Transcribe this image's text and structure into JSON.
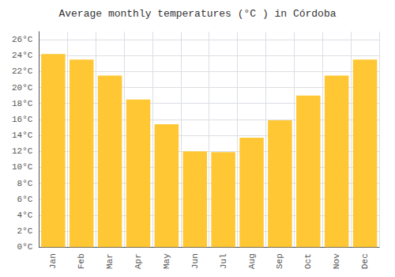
{
  "chart_data": {
    "type": "bar",
    "title": "Average monthly temperatures (°C ) in Córdoba",
    "categories": [
      "Jan",
      "Feb",
      "Mar",
      "Apr",
      "May",
      "Jun",
      "Jul",
      "Aug",
      "Sep",
      "Oct",
      "Nov",
      "Dec"
    ],
    "values": [
      24.2,
      23.5,
      21.5,
      18.5,
      15.4,
      12.0,
      11.9,
      13.7,
      15.9,
      19.0,
      21.5,
      23.5
    ],
    "color": "#FFC733",
    "ylim": [
      0,
      27
    ],
    "yticks": [
      {
        "value": 0,
        "label": "0°C"
      },
      {
        "value": 2,
        "label": "2°C"
      },
      {
        "value": 4,
        "label": "4°C"
      },
      {
        "value": 6,
        "label": "6°C"
      },
      {
        "value": 8,
        "label": "8°C"
      },
      {
        "value": 10,
        "label": "10°C"
      },
      {
        "value": 12,
        "label": "12°C"
      },
      {
        "value": 14,
        "label": "14°C"
      },
      {
        "value": 16,
        "label": "16°C"
      },
      {
        "value": 18,
        "label": "18°C"
      },
      {
        "value": 20,
        "label": "20°C"
      },
      {
        "value": 22,
        "label": "22°C"
      },
      {
        "value": 24,
        "label": "24°C"
      },
      {
        "value": 26,
        "label": "26°C"
      }
    ],
    "grid": true
  }
}
